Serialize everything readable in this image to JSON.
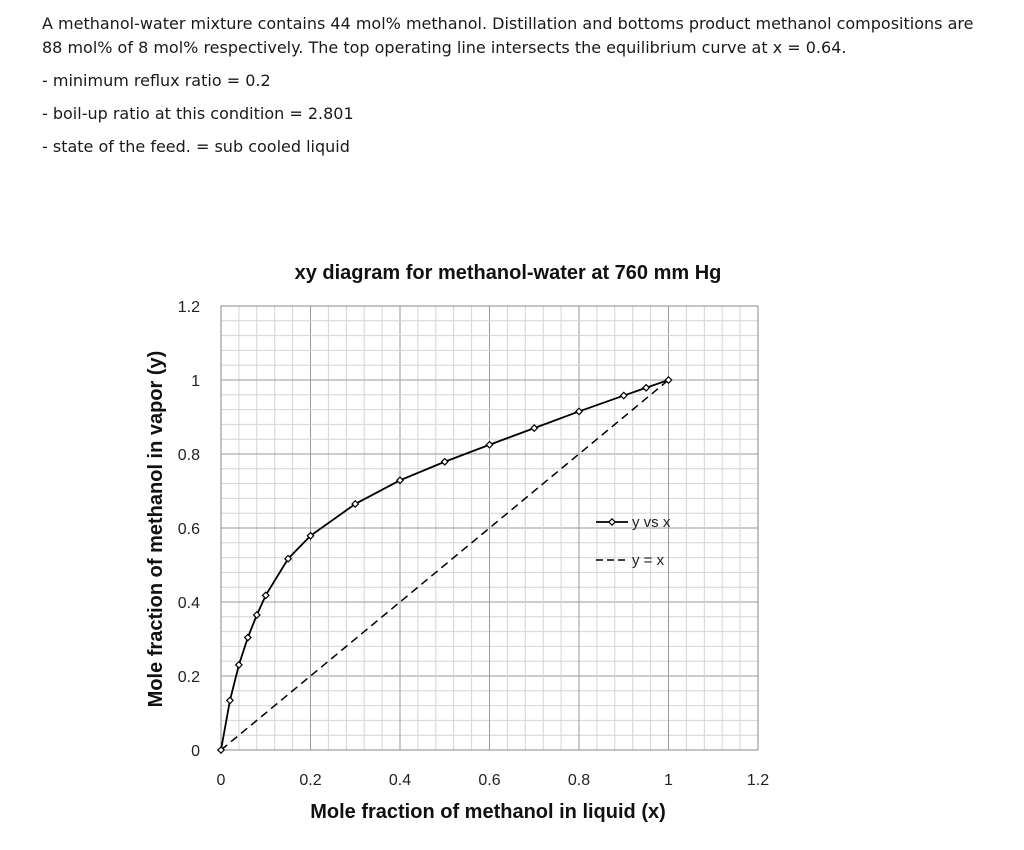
{
  "problem": {
    "statement": "A methanol-water mixture contains 44 mol% methanol. Distillation and bottoms product methanol compositions are 88 mol% of 8 mol% respectively. The top operating line intersects the equilibrium curve at x = 0.64.",
    "answers": [
      "- minimum reflux ratio = 0.2",
      "- boil-up ratio at this condition = 2.801",
      "- state of the feed. = sub cooled liquid"
    ]
  },
  "chart_data": {
    "type": "line",
    "title": "xy diagram for methanol-water at 760 mm Hg",
    "xlabel": "Mole fraction of methanol in liquid (x)",
    "ylabel": "Mole fraction of methanol in vapor (y)",
    "xlim": [
      0,
      1.2
    ],
    "ylim": [
      0,
      1.2
    ],
    "x_ticks": [
      "0",
      "0.2",
      "0.4",
      "0.6",
      "0.8",
      "1",
      "1.2"
    ],
    "y_ticks": [
      "0",
      "0.2",
      "0.4",
      "0.6",
      "0.8",
      "1",
      "1.2"
    ],
    "grid": true,
    "minor_grid": true,
    "legend_position": "right",
    "series": [
      {
        "name": "y vs x",
        "style": "solid-with-markers",
        "color": "#000000",
        "x": [
          0,
          0.02,
          0.04,
          0.06,
          0.08,
          0.1,
          0.15,
          0.2,
          0.3,
          0.4,
          0.5,
          0.6,
          0.7,
          0.8,
          0.9,
          0.95,
          1.0
        ],
        "y": [
          0,
          0.134,
          0.23,
          0.304,
          0.365,
          0.418,
          0.517,
          0.579,
          0.665,
          0.729,
          0.779,
          0.825,
          0.87,
          0.915,
          0.958,
          0.979,
          1.0
        ]
      },
      {
        "name": "y = x",
        "style": "dashed",
        "color": "#000000",
        "x": [
          0,
          1
        ],
        "y": [
          0,
          1
        ]
      }
    ]
  }
}
